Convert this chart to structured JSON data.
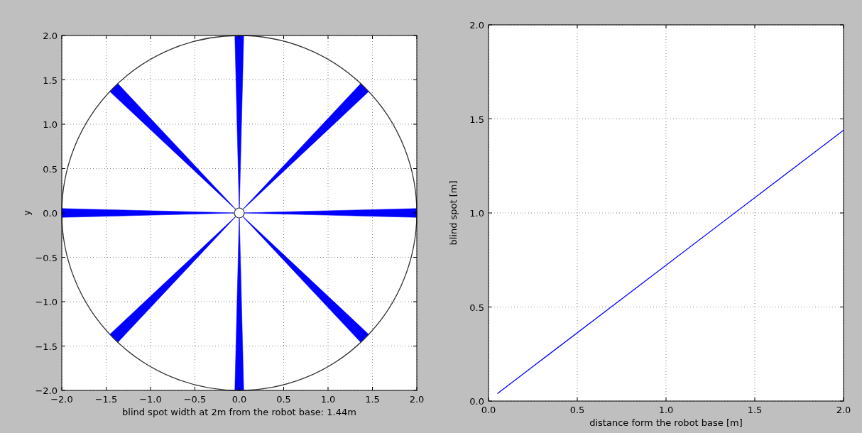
{
  "chart_data": [
    {
      "type": "area",
      "xlabel": "blind spot width at 2m from the robot base: 1.44m",
      "ylabel": "y",
      "xlim": [
        -2,
        2
      ],
      "ylim": [
        -2,
        2
      ],
      "xticks": [
        {
          "value": -2,
          "label": "−2.0"
        },
        {
          "value": -1.5,
          "label": "−1.5"
        },
        {
          "value": -1,
          "label": "−1.0"
        },
        {
          "value": -0.5,
          "label": "−0.5"
        },
        {
          "value": 0,
          "label": "0.0"
        },
        {
          "value": 0.5,
          "label": "0.5"
        },
        {
          "value": 1,
          "label": "1.0"
        },
        {
          "value": 1.5,
          "label": "1.5"
        },
        {
          "value": 2,
          "label": "2.0"
        }
      ],
      "yticks": [
        {
          "value": -2,
          "label": "−2.0"
        },
        {
          "value": -1.5,
          "label": "−1.5"
        },
        {
          "value": -1,
          "label": "−1.0"
        },
        {
          "value": -0.5,
          "label": "−0.5"
        },
        {
          "value": 0,
          "label": "0.0"
        },
        {
          "value": 0.5,
          "label": "0.5"
        },
        {
          "value": 1,
          "label": "1.0"
        },
        {
          "value": 1.5,
          "label": "1.5"
        },
        {
          "value": 2,
          "label": "2.0"
        }
      ],
      "grid": true,
      "series": [
        {
          "color": "#0000ff",
          "x": [
            0,
            2,
            2
          ],
          "values": [
            0,
            0.05,
            -0.05
          ]
        },
        {
          "color": "#0000ff",
          "x": [
            0,
            1.37,
            1.46
          ],
          "values": [
            0,
            1.46,
            1.37
          ]
        },
        {
          "color": "#0000ff",
          "x": [
            0,
            -0.05,
            0.05
          ],
          "values": [
            0,
            2,
            2
          ]
        },
        {
          "color": "#0000ff",
          "x": [
            0,
            -1.37,
            -1.46
          ],
          "values": [
            0,
            1.46,
            1.37
          ]
        },
        {
          "color": "#0000ff",
          "x": [
            0,
            -2,
            -2
          ],
          "values": [
            0,
            0.05,
            -0.05
          ]
        },
        {
          "color": "#0000ff",
          "x": [
            0,
            -1.37,
            -1.46
          ],
          "values": [
            0,
            -1.46,
            -1.37
          ]
        },
        {
          "color": "#0000ff",
          "x": [
            0,
            -0.05,
            0.05
          ],
          "values": [
            0,
            -2,
            -2
          ]
        },
        {
          "color": "#0000ff",
          "x": [
            0,
            1.37,
            1.46
          ],
          "values": [
            0,
            -1.46,
            -1.37
          ]
        }
      ]
    },
    {
      "type": "line",
      "xlabel": "distance form the robot base [m]",
      "ylabel": "blind spot [m]",
      "xlim": [
        0,
        2
      ],
      "ylim": [
        0,
        2
      ],
      "xticks": [
        {
          "value": 0,
          "label": "0.0"
        },
        {
          "value": 0.5,
          "label": "0.5"
        },
        {
          "value": 1,
          "label": "1.0"
        },
        {
          "value": 1.5,
          "label": "1.5"
        },
        {
          "value": 2,
          "label": "2.0"
        }
      ],
      "yticks": [
        {
          "value": 0,
          "label": "0.0"
        },
        {
          "value": 0.5,
          "label": "0.5"
        },
        {
          "value": 1,
          "label": "1.0"
        },
        {
          "value": 1.5,
          "label": "1.5"
        },
        {
          "value": 2,
          "label": "2.0"
        }
      ],
      "grid": true,
      "series": [
        {
          "color": "#0000ff",
          "x": [
            0.05,
            2
          ],
          "values": [
            0.04,
            1.44
          ]
        }
      ]
    }
  ]
}
